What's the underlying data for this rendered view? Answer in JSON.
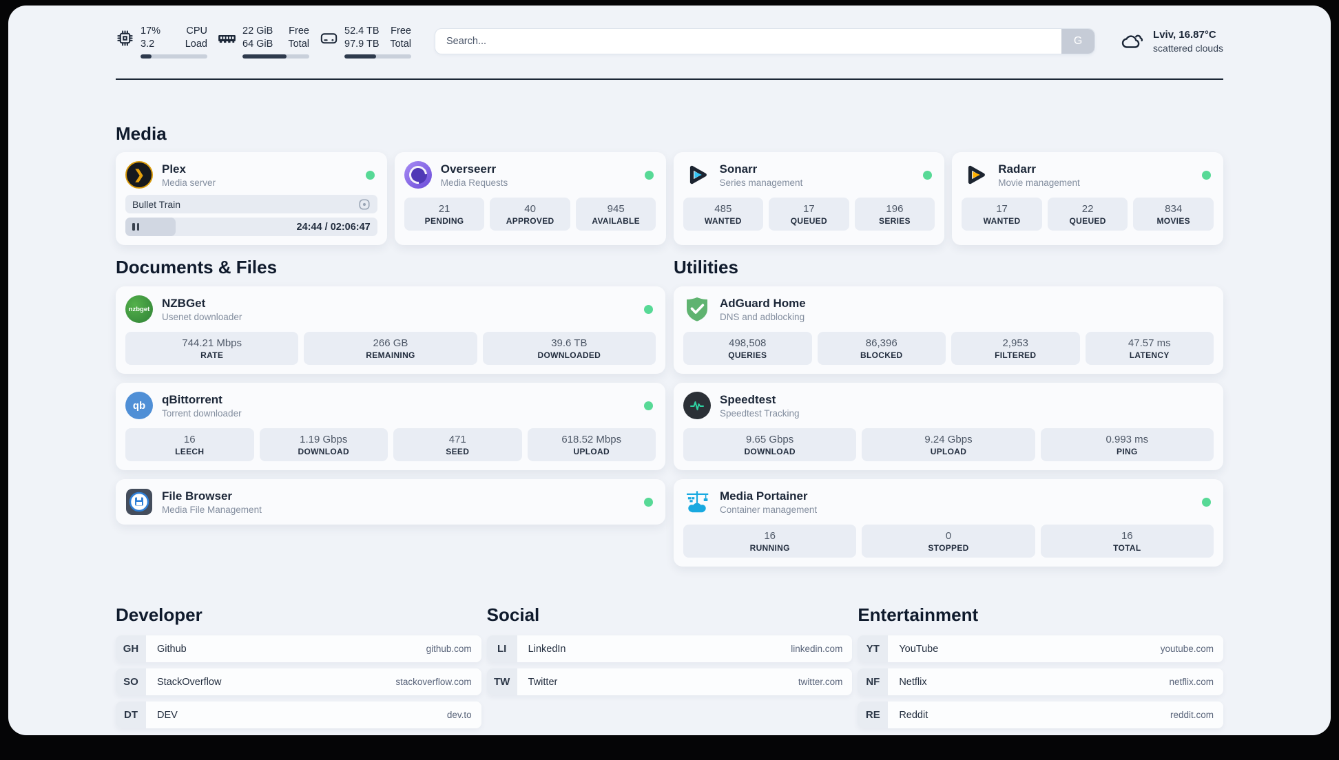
{
  "header": {
    "cpu": {
      "percent": "17%",
      "load": "3.2",
      "label_top": "CPU",
      "label_bottom": "Load",
      "progress": 17
    },
    "ram": {
      "free": "22 GiB",
      "total": "64 GiB",
      "label_top": "Free",
      "label_bottom": "Total",
      "progress": 66
    },
    "disk": {
      "free": "52.4 TB",
      "total": "97.9 TB",
      "label_top": "Free",
      "label_bottom": "Total",
      "progress": 47
    },
    "search": {
      "placeholder": "Search...",
      "button": "G"
    },
    "weather": {
      "location": "Lviv, 16.87°C",
      "condition": "scattered clouds"
    }
  },
  "icons": {
    "plex_chevron": "❯"
  },
  "colors": {
    "status_online": "#57d996",
    "plex": "#e5a00d",
    "sonarr": "#35c5f4",
    "radarr": "#ffb000",
    "nzbget": "#3e9e41",
    "qbittorrent": "#4f8fd6",
    "adguard": "#5fb370",
    "speedtest_pulse": "#2ed3a3",
    "portainer": "#18a9e0",
    "overseerr": "#7c5bdb"
  },
  "media": {
    "title": "Media",
    "plex": {
      "name": "Plex",
      "desc": "Media server",
      "now_playing": "Bullet Train",
      "time": "24:44 / 02:06:47",
      "progress": 20
    },
    "overseerr": {
      "name": "Overseerr",
      "desc": "Media Requests",
      "badge": "ov",
      "stats": [
        {
          "value": "21",
          "label": "PENDING"
        },
        {
          "value": "40",
          "label": "APPROVED"
        },
        {
          "value": "945",
          "label": "AVAILABLE"
        }
      ]
    },
    "sonarr": {
      "name": "Sonarr",
      "desc": "Series management",
      "stats": [
        {
          "value": "485",
          "label": "WANTED"
        },
        {
          "value": "17",
          "label": "QUEUED"
        },
        {
          "value": "196",
          "label": "SERIES"
        }
      ]
    },
    "radarr": {
      "name": "Radarr",
      "desc": "Movie management",
      "stats": [
        {
          "value": "17",
          "label": "WANTED"
        },
        {
          "value": "22",
          "label": "QUEUED"
        },
        {
          "value": "834",
          "label": "MOVIES"
        }
      ]
    }
  },
  "documents": {
    "title": "Documents & Files",
    "nzbget": {
      "name": "NZBGet",
      "desc": "Usenet downloader",
      "badge": "nzbget",
      "stats": [
        {
          "value": "744.21 Mbps",
          "label": "RATE"
        },
        {
          "value": "266 GB",
          "label": "REMAINING"
        },
        {
          "value": "39.6 TB",
          "label": "DOWNLOADED"
        }
      ]
    },
    "qbittorrent": {
      "name": "qBittorrent",
      "desc": "Torrent downloader",
      "badge": "qb",
      "stats": [
        {
          "value": "16",
          "label": "LEECH"
        },
        {
          "value": "1.19 Gbps",
          "label": "DOWNLOAD"
        },
        {
          "value": "471",
          "label": "SEED"
        },
        {
          "value": "618.52 Mbps",
          "label": "UPLOAD"
        }
      ]
    },
    "filebrowser": {
      "name": "File Browser",
      "desc": "Media File Management"
    }
  },
  "utilities": {
    "title": "Utilities",
    "adguard": {
      "name": "AdGuard Home",
      "desc": "DNS and adblocking",
      "stats": [
        {
          "value": "498,508",
          "label": "QUERIES"
        },
        {
          "value": "86,396",
          "label": "BLOCKED"
        },
        {
          "value": "2,953",
          "label": "FILTERED"
        },
        {
          "value": "47.57 ms",
          "label": "LATENCY"
        }
      ]
    },
    "speedtest": {
      "name": "Speedtest",
      "desc": "Speedtest Tracking",
      "stats": [
        {
          "value": "9.65 Gbps",
          "label": "DOWNLOAD"
        },
        {
          "value": "9.24 Gbps",
          "label": "UPLOAD"
        },
        {
          "value": "0.993 ms",
          "label": "PING"
        }
      ]
    },
    "portainer": {
      "name": "Media Portainer",
      "desc": "Container management",
      "stats": [
        {
          "value": "16",
          "label": "RUNNING"
        },
        {
          "value": "0",
          "label": "STOPPED"
        },
        {
          "value": "16",
          "label": "TOTAL"
        }
      ]
    }
  },
  "bookmarks": {
    "developer": {
      "title": "Developer",
      "items": [
        {
          "abbr": "GH",
          "name": "Github",
          "url": "github.com"
        },
        {
          "abbr": "SO",
          "name": "StackOverflow",
          "url": "stackoverflow.com"
        },
        {
          "abbr": "DT",
          "name": "DEV",
          "url": "dev.to"
        }
      ]
    },
    "social": {
      "title": "Social",
      "items": [
        {
          "abbr": "LI",
          "name": "LinkedIn",
          "url": "linkedin.com"
        },
        {
          "abbr": "TW",
          "name": "Twitter",
          "url": "twitter.com"
        }
      ]
    },
    "entertainment": {
      "title": "Entertainment",
      "items": [
        {
          "abbr": "YT",
          "name": "YouTube",
          "url": "youtube.com"
        },
        {
          "abbr": "NF",
          "name": "Netflix",
          "url": "netflix.com"
        },
        {
          "abbr": "RE",
          "name": "Reddit",
          "url": "reddit.com"
        }
      ]
    }
  }
}
